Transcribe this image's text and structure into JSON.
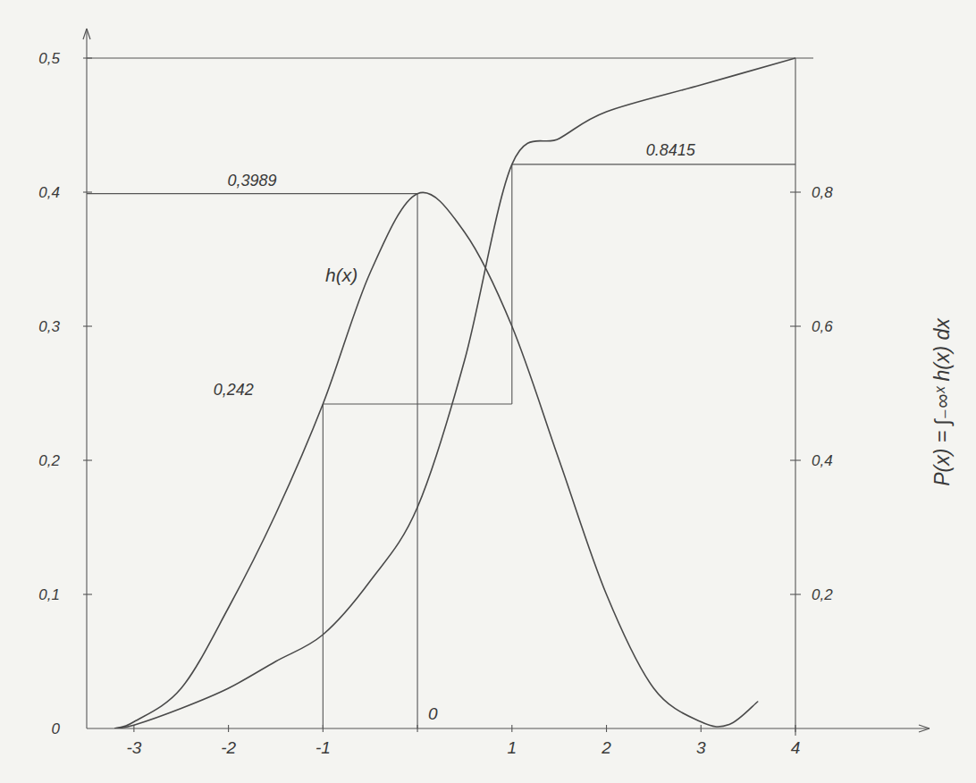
{
  "chart_data": {
    "type": "line",
    "xlim": [
      -3.5,
      4
    ],
    "xticks": [
      -3,
      -2,
      -1,
      0,
      1,
      2,
      3,
      4
    ],
    "ylim": [
      0,
      0.5
    ],
    "yticks": [
      0,
      {
        "value": 0.1,
        "label": "0,1"
      },
      {
        "value": 0.2,
        "label": "0,2"
      },
      {
        "value": 0.3,
        "label": "0,3"
      },
      {
        "value": 0.4,
        "label": "0,4"
      },
      {
        "value": 0.5,
        "label": "0,5"
      }
    ],
    "y2lim": [
      0,
      1
    ],
    "y2ticks": [
      {
        "value": 0.2,
        "label": "0,2"
      },
      {
        "value": 0.4,
        "label": "0,4"
      },
      {
        "value": 0.6,
        "label": "0,6"
      },
      {
        "value": 0.8,
        "label": "0,8"
      }
    ],
    "y2_label": "P(x) = ∫₋∞ˣ h(x) dx",
    "grid": false,
    "series": [
      {
        "name": "h(x)",
        "color": "#4a4a4a",
        "x": [
          -3.2,
          -3,
          -2.5,
          -2,
          -1.5,
          -1,
          -0.5,
          0,
          0.5,
          1,
          1.5,
          2,
          2.5,
          3,
          3.3,
          3.6
        ],
        "values": [
          0,
          0.005,
          0.03,
          0.09,
          0.16,
          0.242,
          0.34,
          0.3989,
          0.37,
          0.3,
          0.2,
          0.1,
          0.03,
          0.005,
          0.003,
          0.02
        ]
      },
      {
        "axis": "y2",
        "color": "#4a4a4a",
        "x": [
          -3.2,
          -3,
          -2.5,
          -2,
          -1.5,
          -1,
          -0.5,
          0,
          0.5,
          1,
          1.5,
          2,
          3,
          4
        ],
        "values": [
          0,
          0.005,
          0.03,
          0.06,
          0.1,
          0.14,
          0.22,
          0.33,
          0.55,
          0.8415,
          0.88,
          0.92,
          0.96,
          1
        ]
      }
    ],
    "annotations": [
      {
        "text": "0,3989",
        "x": 0,
        "y": 0.3989
      },
      {
        "text": "0,242",
        "x": -1,
        "y": 0.242
      },
      {
        "text": "0.8415",
        "x": 1,
        "y": 0.8415,
        "axis": "y2"
      }
    ]
  }
}
